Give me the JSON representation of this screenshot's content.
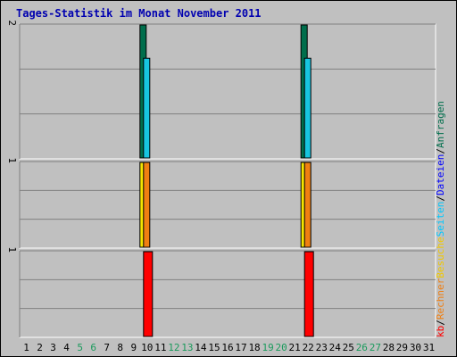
{
  "chart_data": {
    "type": "bar",
    "title": "Tages-Statistik im Monat November 2011",
    "days": [
      "1",
      "2",
      "3",
      "4",
      "5",
      "6",
      "7",
      "8",
      "9",
      "10",
      "11",
      "12",
      "13",
      "14",
      "15",
      "16",
      "17",
      "18",
      "19",
      "20",
      "21",
      "22",
      "23",
      "24",
      "25",
      "26",
      "27",
      "28",
      "29",
      "30",
      "31"
    ],
    "weekend_days": [
      "5",
      "6",
      "12",
      "13",
      "19",
      "20",
      "26",
      "27"
    ],
    "panels": [
      {
        "id": "requests",
        "max_label": "2",
        "max": 2,
        "series": [
          {
            "name": "Anfragen",
            "color": "#006e4c",
            "values": {
              "10": 2,
              "22": 2
            }
          },
          {
            "name": "Dateien",
            "color": "#17c5e0",
            "values": {
              "10": 1.5,
              "22": 1.5
            }
          }
        ]
      },
      {
        "id": "visits",
        "max_label": "1",
        "max": 1,
        "series": [
          {
            "name": "Besuche",
            "color": "#f5e400",
            "values": {
              "10": 1,
              "22": 1
            }
          },
          {
            "name": "Rechner",
            "color": "#f07f12",
            "values": {
              "10": 1,
              "22": 1
            }
          }
        ]
      },
      {
        "id": "kb",
        "max_label": "1",
        "max": 1,
        "series": [
          {
            "name": "kb",
            "color": "#ff0000",
            "values": {
              "10": 1,
              "22": 1
            }
          }
        ]
      }
    ],
    "legend_right": [
      {
        "text": "Anfragen",
        "color": "#006e4c"
      },
      {
        "text": "Dateien",
        "color": "#0000ff"
      },
      {
        "text": "Seiten",
        "color": "#00c8ff"
      },
      {
        "text": "Besuche",
        "color": "#f0c800"
      },
      {
        "text": "Rechner",
        "color": "#f07f12"
      },
      {
        "text": "kb",
        "color": "#ff0000"
      }
    ],
    "legend_separator": "/",
    "grid": true,
    "colors": {
      "background": "#c0c0c0",
      "title": "#0000b0",
      "weekday_label": "#000000",
      "weekend_label": "#1a9a5c"
    }
  }
}
